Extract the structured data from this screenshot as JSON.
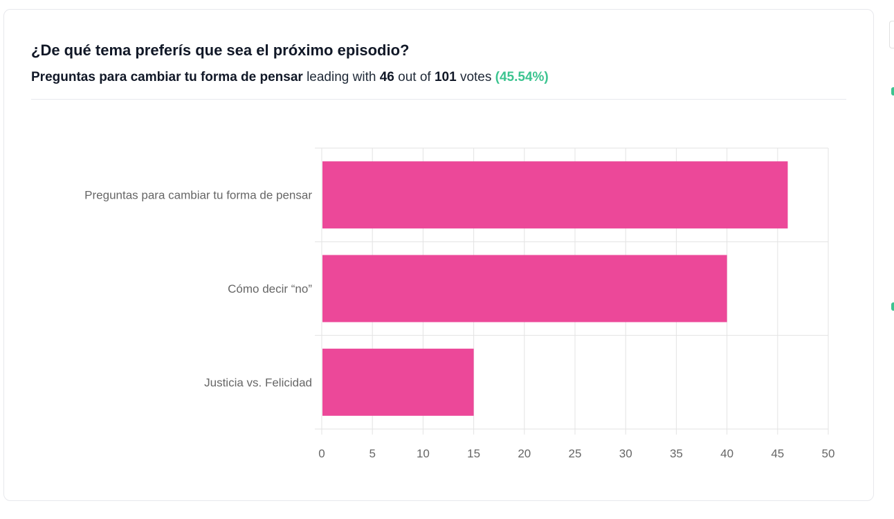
{
  "poll": {
    "question": "¿De qué tema preferís que sea el próximo episodio?",
    "leader": "Preguntas para cambiar tu forma de pensar",
    "leading_with": "leading with",
    "leader_votes": "46",
    "out_of": "out of",
    "total_votes": "101",
    "votes_word": "votes",
    "percent": "(45.54%)"
  },
  "colors": {
    "bar": "#ec4899",
    "accent_green": "#3cc490",
    "grid": "#e3e3e3",
    "tick_text": "#666666"
  },
  "chart_data": {
    "type": "bar",
    "orientation": "horizontal",
    "categories": [
      "Preguntas para cambiar tu forma de pensar",
      "Cómo decir “no”",
      "Justicia vs. Felicidad"
    ],
    "values": [
      46,
      40,
      15
    ],
    "xlim": [
      0,
      50
    ],
    "xticks": [
      "0",
      "5",
      "10",
      "15",
      "20",
      "25",
      "30",
      "35",
      "40",
      "45",
      "50"
    ],
    "grid": true,
    "title": "",
    "xlabel": "",
    "ylabel": ""
  }
}
